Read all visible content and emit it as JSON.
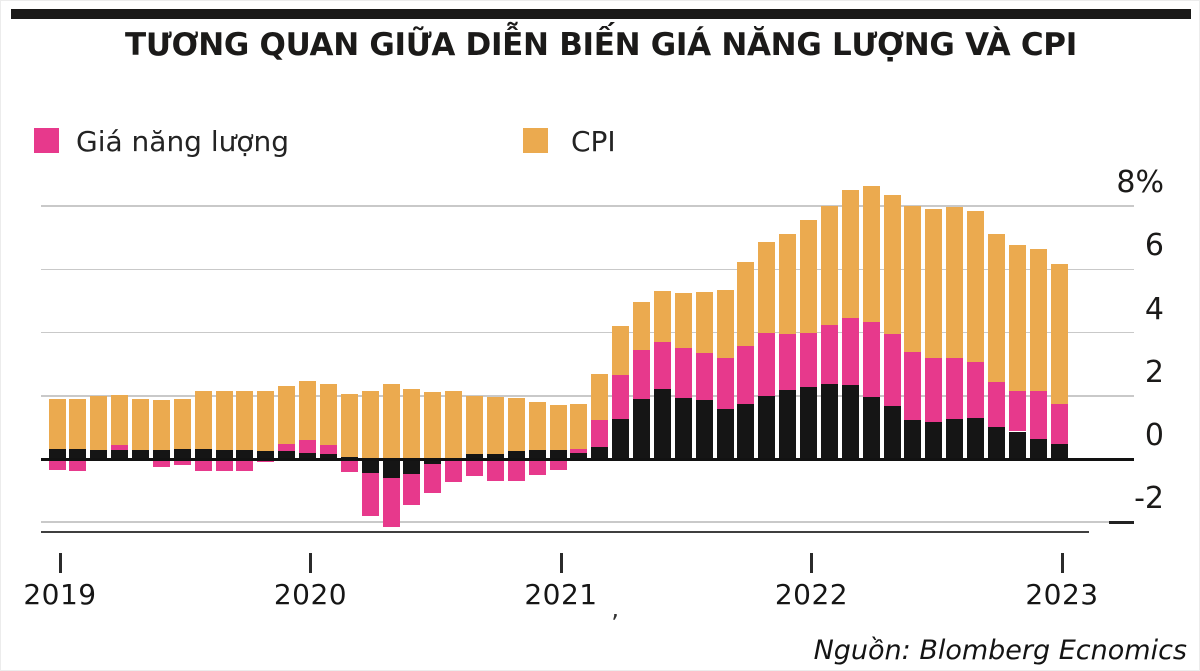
{
  "title": "TƯƠNG QUAN GIỮA DIỄN BIẾN GIÁ NĂNG LƯỢNG VÀ CPI",
  "legend": [
    {
      "label": "Giá năng lượng",
      "color": "#e7398c"
    },
    {
      "label": "CPI",
      "color": "#ebaa4f"
    }
  ],
  "source": "Nguồn: Blomberg Ecnomics",
  "stray_mark": "’",
  "colors": {
    "pink": "#e7398c",
    "orange": "#ebaa4f",
    "black_segment": "#151515",
    "gridline": "#c9c9c9",
    "zero_line": "#121212",
    "title_rule": "#1b1a19"
  },
  "chart_data": {
    "type": "bar",
    "stacked": true,
    "unit": "%",
    "title": "TƯƠNG QUAN GIỮA DIỄN BIẾN GIÁ NĂNG LƯỢNG VÀ CPI",
    "legend_position": "top",
    "grid": true,
    "ylim": [
      -2.6,
      9.2
    ],
    "y_ticks": [
      {
        "label": "8%",
        "value": 8
      },
      {
        "label": "6",
        "value": 6
      },
      {
        "label": "4",
        "value": 4
      },
      {
        "label": "2",
        "value": 2
      },
      {
        "label": "0",
        "value": 0
      },
      {
        "label": "-2",
        "value": -2
      }
    ],
    "x_ticks": [
      {
        "label": "2019",
        "month_index": 0
      },
      {
        "label": "2020",
        "month_index": 12
      },
      {
        "label": "2021",
        "month_index": 24
      },
      {
        "label": "2022",
        "month_index": 36
      },
      {
        "label": "2023",
        "month_index": 48
      }
    ],
    "categories": [
      "2019-01",
      "2019-02",
      "2019-03",
      "2019-04",
      "2019-05",
      "2019-06",
      "2019-07",
      "2019-08",
      "2019-09",
      "2019-10",
      "2019-11",
      "2019-12",
      "2020-01",
      "2020-02",
      "2020-03",
      "2020-04",
      "2020-05",
      "2020-06",
      "2020-07",
      "2020-08",
      "2020-09",
      "2020-10",
      "2020-11",
      "2020-12",
      "2021-01",
      "2021-02",
      "2021-03",
      "2021-04",
      "2021-05",
      "2021-06",
      "2021-07",
      "2021-08",
      "2021-09",
      "2021-10",
      "2021-11",
      "2021-12",
      "2022-01",
      "2022-02",
      "2022-03",
      "2022-04",
      "2022-05",
      "2022-06",
      "2022-07",
      "2022-08",
      "2022-09",
      "2022-10",
      "2022-11",
      "2022-12",
      "2023-01"
    ],
    "series": [
      {
        "name": "khác (đoạn đen, không chú thích)",
        "color": "#151515",
        "values": [
          0.33,
          0.31,
          0.27,
          0.27,
          0.3,
          0.3,
          0.32,
          0.33,
          0.3,
          0.27,
          0.25,
          0.25,
          0.19,
          0.17,
          0.05,
          -0.43,
          -0.59,
          -0.48,
          -0.15,
          -0.04,
          0.15,
          0.17,
          0.25,
          0.29,
          0.28,
          0.18,
          0.38,
          1.27,
          1.9,
          2.2,
          1.93,
          1.88,
          1.57,
          1.73,
          2.0,
          2.19,
          2.29,
          2.37,
          2.35,
          1.96,
          1.69,
          1.24,
          1.16,
          1.27,
          1.31,
          1.01,
          0.87,
          0.64,
          0.47
        ]
      },
      {
        "name": "Giá năng lượng",
        "color": "#e7398c",
        "values": [
          -0.36,
          -0.37,
          0.0,
          0.16,
          0.0,
          -0.25,
          -0.18,
          -0.38,
          -0.38,
          -0.38,
          -0.08,
          0.21,
          0.42,
          0.26,
          -0.4,
          -1.37,
          -1.56,
          -0.98,
          -0.92,
          -0.68,
          -0.55,
          -0.7,
          -0.7,
          -0.5,
          -0.36,
          0.15,
          0.84,
          1.4,
          1.55,
          1.49,
          1.57,
          1.47,
          1.62,
          1.86,
          1.98,
          1.77,
          1.69,
          1.88,
          2.11,
          2.37,
          2.27,
          2.14,
          2.05,
          1.94,
          1.77,
          1.42,
          1.29,
          1.5,
          1.26
        ]
      },
      {
        "name": "CPI",
        "color": "#ebaa4f",
        "values": [
          1.57,
          1.59,
          1.73,
          1.59,
          1.6,
          1.56,
          1.58,
          1.81,
          1.86,
          1.89,
          1.89,
          1.86,
          1.87,
          1.94,
          2.0,
          2.14,
          2.36,
          2.2,
          2.11,
          2.14,
          1.85,
          1.8,
          1.68,
          1.5,
          1.42,
          1.4,
          1.48,
          1.53,
          1.53,
          1.63,
          1.75,
          1.93,
          2.16,
          2.63,
          2.88,
          3.15,
          3.57,
          3.76,
          4.06,
          4.3,
          4.4,
          4.63,
          4.69,
          4.78,
          4.76,
          4.69,
          4.6,
          4.51,
          4.44
        ]
      }
    ]
  }
}
